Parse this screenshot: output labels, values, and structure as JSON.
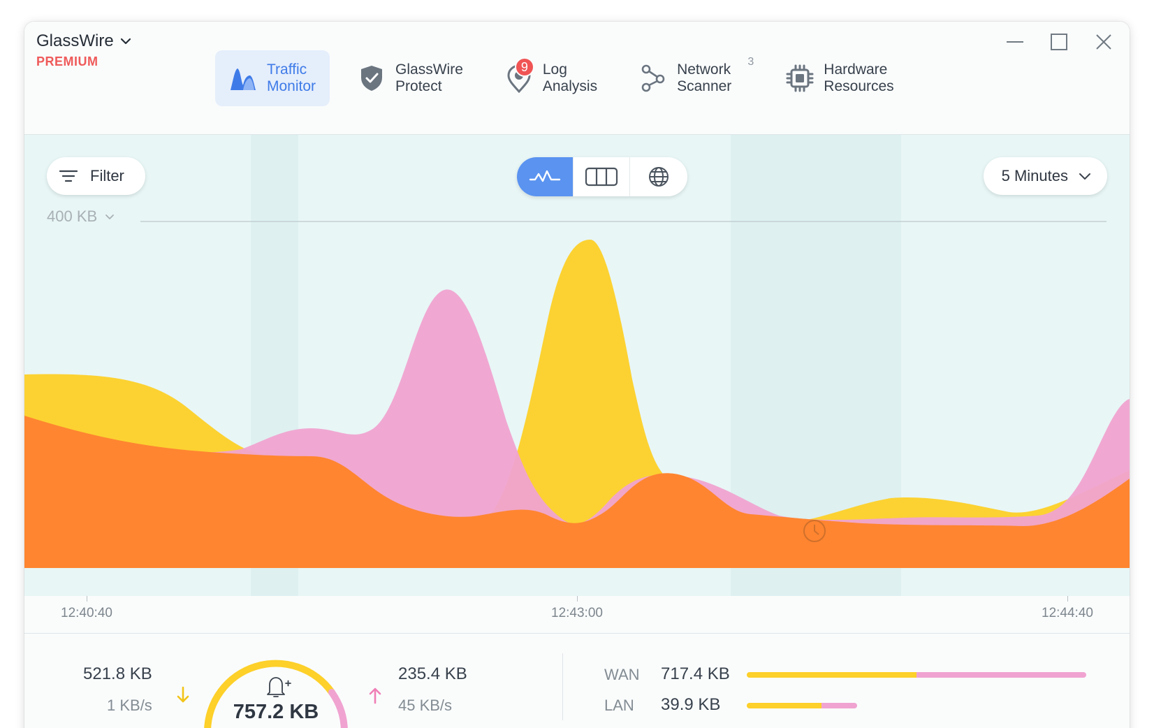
{
  "app": {
    "name": "GlassWire",
    "plan": "PREMIUM"
  },
  "nav": {
    "tabs": [
      {
        "label": "Traffic\nMonitor",
        "icon": "traffic-monitor-icon",
        "active": true
      },
      {
        "label": "GlassWire\nProtect",
        "icon": "shield-check-icon"
      },
      {
        "label": "Log\nAnalysis",
        "icon": "log-pin-icon",
        "badge": "9"
      },
      {
        "label": "Network\nScanner",
        "icon": "network-nodes-icon",
        "superscript": "3"
      },
      {
        "label": "Hardware\nResources",
        "icon": "chip-icon"
      }
    ]
  },
  "window_controls": {
    "minimize": "minimize-icon",
    "maximize": "maximize-icon",
    "close": "close-icon"
  },
  "toolbar": {
    "filter_label": "Filter",
    "time_range": "5 Minutes",
    "scale": "400 KB",
    "views": [
      "graph-view-icon",
      "columns-view-icon",
      "globe-view-icon"
    ]
  },
  "colors": {
    "download": "#fdd02a",
    "upload": "#f0a3d0",
    "both": "#ff8530",
    "accent": "#5a93f0",
    "premium": "#ef5a5a"
  },
  "chart_data": {
    "type": "area",
    "ylim": [
      0,
      400
    ],
    "x": [
      "12:40:40",
      "12:43:00",
      "12:44:40"
    ],
    "tick_labels": [
      "12:40:40",
      "12:43:00",
      "12:44:40"
    ],
    "series": []
  },
  "stats": {
    "download_total": "521.8 KB",
    "download_rate": "1 KB/s",
    "total": "757.2 KB",
    "upload_total": "235.4 KB",
    "upload_rate": "45 KB/s",
    "wan_label": "WAN",
    "wan_value": "717.4 KB",
    "lan_label": "LAN",
    "lan_value": "39.9 KB"
  }
}
